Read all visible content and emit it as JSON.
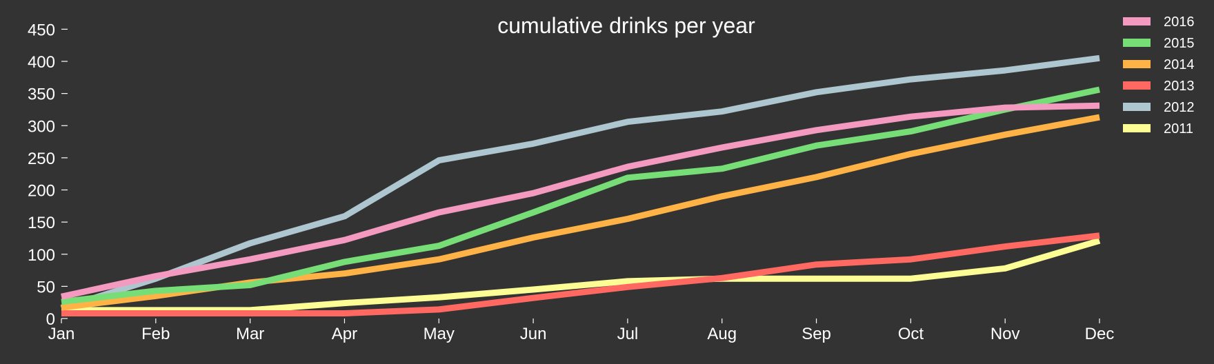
{
  "chart_data": {
    "type": "line",
    "title": "cumulative drinks per year",
    "xlabel": "",
    "ylabel": "",
    "categories": [
      "Jan",
      "Feb",
      "Mar",
      "Apr",
      "May",
      "Jun",
      "Jul",
      "Aug",
      "Sep",
      "Oct",
      "Nov",
      "Dec"
    ],
    "yticks": [
      0,
      50,
      100,
      150,
      200,
      250,
      300,
      350,
      400,
      450
    ],
    "ylim": [
      0,
      470
    ],
    "grid": false,
    "legend_position": "top-right",
    "series": [
      {
        "name": "2016",
        "color": "#f49ac1",
        "values": [
          34,
          66,
          92,
          122,
          165,
          195,
          236,
          266,
          293,
          314,
          328,
          331
        ]
      },
      {
        "name": "2015",
        "color": "#77dd77",
        "values": [
          26,
          43,
          52,
          88,
          113,
          165,
          219,
          233,
          269,
          291,
          325,
          356
        ]
      },
      {
        "name": "2014",
        "color": "#ffb347",
        "values": [
          17,
          35,
          56,
          70,
          92,
          126,
          155,
          190,
          220,
          256,
          286,
          313
        ]
      },
      {
        "name": "2013",
        "color": "#ff6961",
        "values": [
          8,
          8,
          8,
          8,
          14,
          32,
          49,
          63,
          84,
          92,
          112,
          129
        ]
      },
      {
        "name": "2012",
        "color": "#aec6cf",
        "values": [
          16,
          62,
          117,
          159,
          246,
          272,
          306,
          322,
          352,
          372,
          386,
          405
        ]
      },
      {
        "name": "2011",
        "color": "#fdfd96",
        "values": [
          13,
          13,
          13,
          24,
          33,
          45,
          58,
          62,
          62,
          62,
          78,
          121
        ]
      }
    ]
  }
}
